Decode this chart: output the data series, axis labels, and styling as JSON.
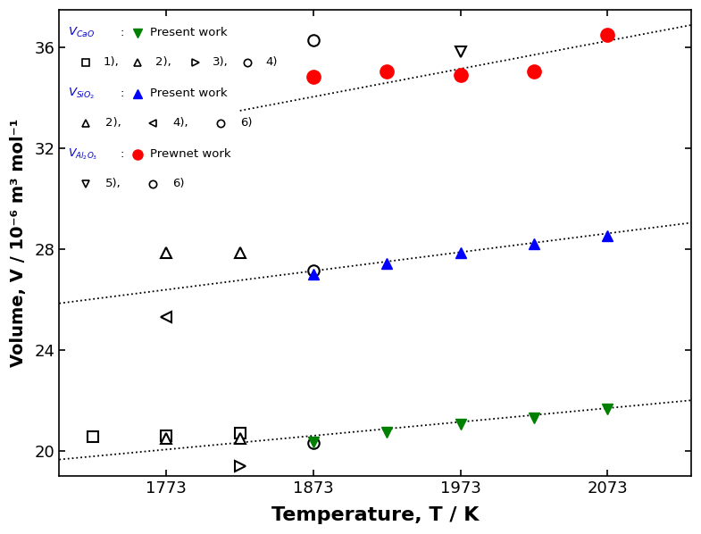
{
  "xlabel": "Temperature, T / K",
  "ylabel": "Volume, V / 10⁻⁶ m³ mol⁻¹",
  "xlim": [
    1700,
    2130
  ],
  "ylim": [
    19.0,
    37.5
  ],
  "xticks": [
    1773,
    1873,
    1973,
    2073
  ],
  "yticks": [
    20,
    24,
    28,
    32,
    36
  ],
  "CaO_present_T": [
    1873,
    1923,
    1973,
    2023,
    2073
  ],
  "CaO_present_V": [
    20.35,
    20.72,
    21.05,
    21.3,
    21.65
  ],
  "CaO_sq1_T": [
    1723,
    1773,
    1823
  ],
  "CaO_sq1_V": [
    20.55,
    20.6,
    20.7
  ],
  "CaO_tri2_T": [
    1773,
    1823
  ],
  "CaO_tri2_V": [
    20.5,
    20.5
  ],
  "CaO_tri3_T": [
    1823
  ],
  "CaO_tri3_V": [
    19.4
  ],
  "CaO_circ4_T": [
    1873
  ],
  "CaO_circ4_V": [
    20.3
  ],
  "CaO_trend_T": [
    1700,
    2130
  ],
  "CaO_trend_V": [
    19.65,
    22.0
  ],
  "SiO2_present_T": [
    1873,
    1923,
    1973,
    2023,
    2073
  ],
  "SiO2_present_V": [
    27.0,
    27.45,
    27.85,
    28.2,
    28.55
  ],
  "SiO2_tri2_T": [
    1773,
    1823
  ],
  "SiO2_tri2_V": [
    27.85,
    27.85
  ],
  "SiO2_ltri4_T": [
    1773
  ],
  "SiO2_ltri4_V": [
    25.3
  ],
  "SiO2_circ6_T": [
    1873
  ],
  "SiO2_circ6_V": [
    27.15
  ],
  "SiO2_trend_T": [
    1700,
    2130
  ],
  "SiO2_trend_V": [
    25.85,
    29.05
  ],
  "Al2O3_prewnet_T": [
    1873,
    1923,
    1973,
    2023,
    2073
  ],
  "Al2O3_prewnet_V": [
    34.85,
    35.05,
    34.9,
    35.05,
    36.5
  ],
  "Al2O3_invtri5_T": [
    1973
  ],
  "Al2O3_invtri5_V": [
    35.85
  ],
  "Al2O3_circ6_T": [
    1873
  ],
  "Al2O3_circ6_V": [
    36.3
  ],
  "Al2O3_trend_T": [
    1823,
    2130
  ],
  "Al2O3_trend_V": [
    33.5,
    36.9
  ],
  "blue_col": "#0000cc",
  "background_color": "#ffffff"
}
